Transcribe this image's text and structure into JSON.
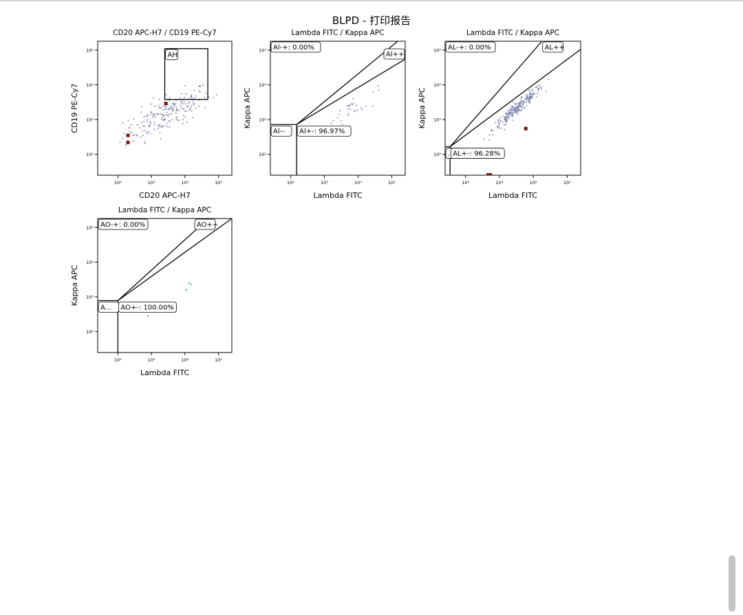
{
  "page": {
    "title": "BLPD - 打印报告"
  },
  "colors": {
    "event_dot": "#7478a8",
    "highlight_event": "#7a1414",
    "teal_event": "#5a9e9e",
    "frame": "#000000",
    "scrollbar": "#c4c4c4"
  },
  "chart_data": [
    {
      "type": "scatter",
      "title": "CD20 APC-H7 / CD19 PE-Cy7",
      "xlabel": "CD20 APC-H7",
      "ylabel": "CD19 PE-Cy7",
      "xscale": "log",
      "yscale": "log",
      "xlim": [
        25,
        250000
      ],
      "ylim": [
        25,
        180000
      ],
      "xticks": [
        100,
        1000,
        10000,
        100000
      ],
      "yticks": [
        100,
        1000,
        10000,
        100000
      ],
      "tick_labels": [
        "10²",
        "10³",
        "10⁴",
        "10⁵"
      ],
      "gates": [
        {
          "name": "AH",
          "shape": "rect",
          "x": [
            2500,
            48000
          ],
          "y": [
            3800,
            110000
          ],
          "label": "AH",
          "label_pos": "top-left"
        }
      ],
      "highlighted_points": [
        [
          200,
          350
        ],
        [
          200,
          220
        ],
        [
          2700,
          2900
        ]
      ],
      "point_cloud": {
        "n": 210,
        "x_center": 3000,
        "y_center": 1500,
        "x_spread": 1.3,
        "y_spread": 0.75,
        "corr": 0.75,
        "xmin": 100,
        "xmax": 150000,
        "ymin": 40,
        "ymax": 40000
      }
    },
    {
      "type": "scatter",
      "title": "Lambda FITC / Kappa APC",
      "xlabel": "Lambda FITC",
      "ylabel": "Kappa APC",
      "xscale": "log",
      "yscale": "log",
      "xlim": [
        25,
        250000
      ],
      "ylim": [
        25,
        180000
      ],
      "xticks": [
        100,
        1000,
        10000,
        100000
      ],
      "yticks": [
        100,
        1000,
        10000,
        100000
      ],
      "tick_labels": [
        "10²",
        "10³",
        "10⁴",
        "10⁵"
      ],
      "gates": [
        {
          "name": "Al--",
          "label": "Al--"
        },
        {
          "name": "Al-+",
          "label": "Al-+: 0.00%"
        },
        {
          "name": "Al++",
          "label": "Al++"
        },
        {
          "name": "Al+-",
          "label": "Al+-: 96.97%"
        }
      ],
      "quad_origin": [
        150,
        720
      ],
      "quad_lines": [
        [
          [
            150,
            720
          ],
          [
            150000,
            180000
          ]
        ],
        [
          [
            150,
            720
          ],
          [
            250000,
            55000
          ]
        ]
      ],
      "highlighted_points": [],
      "point_cloud": {
        "n": 32,
        "x_center": 6000,
        "y_center": 2000,
        "x_spread": 0.8,
        "y_spread": 0.5,
        "corr": 0.8,
        "xmin": 180,
        "xmax": 70000,
        "ymin": 40,
        "ymax": 30000
      }
    },
    {
      "type": "scatter",
      "title": "Lambda FITC / Kappa APC",
      "xlabel": "Lambda FITC",
      "ylabel": "Kappa APC",
      "xscale": "log",
      "yscale": "log",
      "xlim": [
        25,
        250000
      ],
      "ylim": [
        25,
        180000
      ],
      "xticks": [
        100,
        1000,
        10000,
        100000
      ],
      "yticks": [
        100,
        1000,
        10000,
        100000
      ],
      "tick_labels": [
        "10²",
        "10³",
        "10⁴",
        "10⁵"
      ],
      "gates": [
        {
          "name": "AL--",
          "label": "..."
        },
        {
          "name": "AL-+",
          "label": "AL-+: 0.00%"
        },
        {
          "name": "AL++",
          "label": "AL++"
        },
        {
          "name": "AL+-",
          "label": "AL+-: 96.28%"
        }
      ],
      "quad_origin": [
        35,
        165
      ],
      "quad_lines": [
        [
          [
            35,
            165
          ],
          [
            18000,
            180000
          ]
        ],
        [
          [
            35,
            165
          ],
          [
            250000,
            105000
          ]
        ]
      ],
      "highlighted_points": [
        [
          6000,
          550
        ]
      ],
      "bottom_highlight": [
        500,
        26
      ],
      "point_cloud": {
        "n": 230,
        "x_center": 3500,
        "y_center": 2200,
        "x_spread": 0.75,
        "y_spread": 0.65,
        "corr": 0.96,
        "xmin": 300,
        "xmax": 250000,
        "ymin": 50,
        "ymax": 120000
      }
    },
    {
      "type": "scatter",
      "title": "Lambda FITC / Kappa APC",
      "xlabel": "Lambda FITC",
      "ylabel": "Kappa APC",
      "xscale": "log",
      "yscale": "log",
      "xlim": [
        25,
        250000
      ],
      "ylim": [
        25,
        180000
      ],
      "xticks": [
        100,
        1000,
        10000,
        100000
      ],
      "yticks": [
        100,
        1000,
        10000,
        100000
      ],
      "tick_labels": [
        "10²",
        "10³",
        "10⁴",
        "10⁵"
      ],
      "gates": [
        {
          "name": "AO--",
          "label": "A..."
        },
        {
          "name": "AO-+",
          "label": "AO-+: 0.00%"
        },
        {
          "name": "AO++",
          "label": "AO++"
        },
        {
          "name": "AO+-",
          "label": "AO+-: 100.00%"
        }
      ],
      "quad_origin": [
        100,
        780
      ],
      "quad_lines": [
        [
          [
            100,
            780
          ],
          [
            50000,
            180000
          ]
        ],
        [
          [
            100,
            780
          ],
          [
            250000,
            180000
          ]
        ]
      ],
      "highlighted_points": [],
      "teal_points": [
        [
          11000,
          1600
        ],
        [
          13000,
          2500
        ],
        [
          15000,
          2300
        ],
        [
          800,
          280
        ]
      ],
      "point_cloud": {
        "n": 0
      }
    }
  ]
}
